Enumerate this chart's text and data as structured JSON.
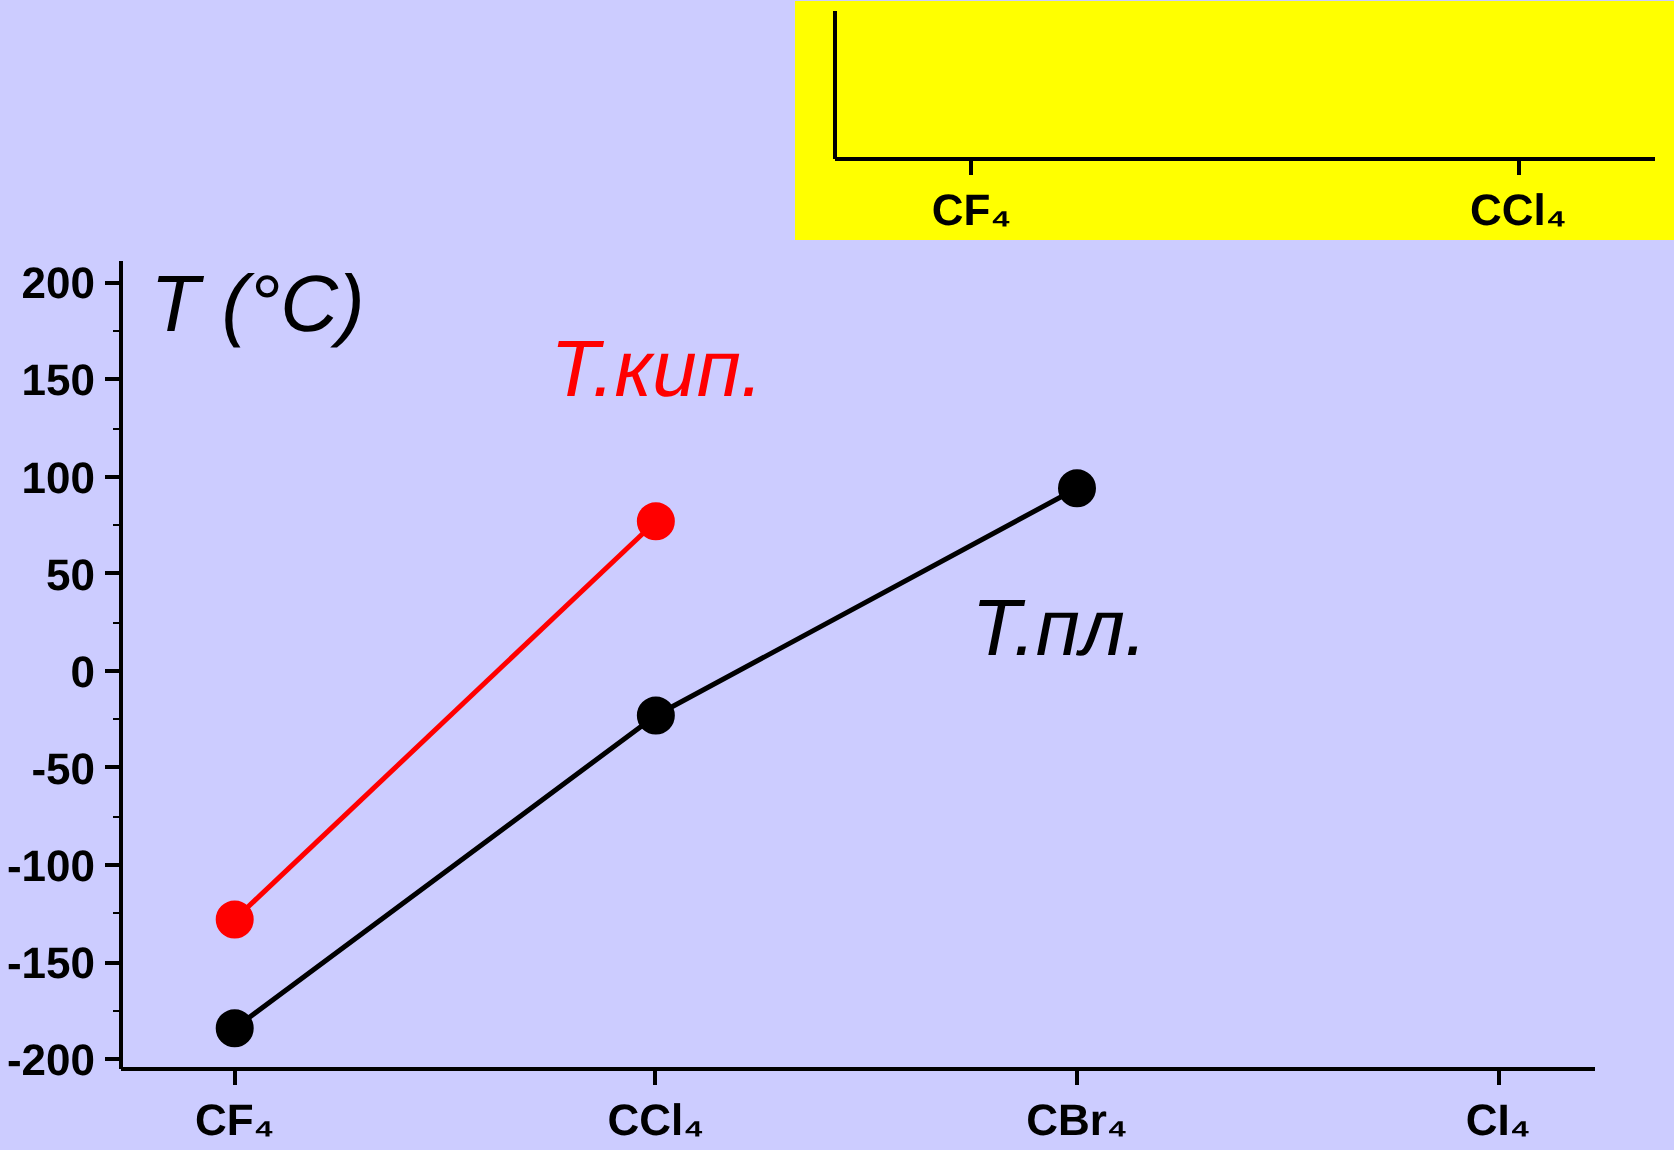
{
  "chart_data": [
    {
      "type": "line",
      "ylabel": "T (°C)",
      "categories": [
        "CF₄",
        "CCl₄",
        "CBr₄",
        "CI₄"
      ],
      "series": [
        {
          "name": "Т.кип.",
          "color": "#ff0000",
          "values": [
            -128,
            77,
            null,
            null
          ]
        },
        {
          "name": "Т.пл.",
          "color": "#000000",
          "values": [
            -184,
            -23,
            94,
            null
          ]
        }
      ],
      "ylim": [
        -205,
        211
      ],
      "yticks": [
        -200,
        -150,
        -100,
        -50,
        0,
        50,
        100,
        150,
        200
      ],
      "marker": "circle",
      "line_style": "solid",
      "grid": false
    },
    {
      "type": "other",
      "categories": [
        "CF₄",
        "CCl₄"
      ]
    }
  ]
}
